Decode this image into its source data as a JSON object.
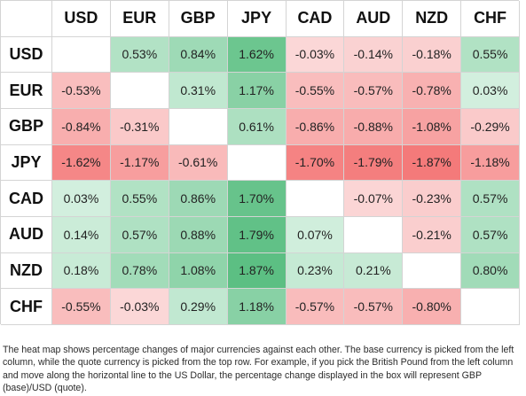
{
  "currencies": [
    "USD",
    "EUR",
    "GBP",
    "JPY",
    "CAD",
    "AUD",
    "NZD",
    "CHF"
  ],
  "rows": [
    {
      "base": "USD",
      "cells": [
        null,
        0.53,
        0.84,
        1.62,
        -0.03,
        -0.14,
        -0.18,
        0.55
      ]
    },
    {
      "base": "EUR",
      "cells": [
        -0.53,
        null,
        0.31,
        1.17,
        -0.55,
        -0.57,
        -0.78,
        0.03
      ]
    },
    {
      "base": "GBP",
      "cells": [
        -0.84,
        -0.31,
        null,
        0.61,
        -0.86,
        -0.88,
        -1.08,
        -0.29
      ]
    },
    {
      "base": "JPY",
      "cells": [
        -1.62,
        -1.17,
        -0.61,
        null,
        -1.7,
        -1.79,
        -1.87,
        -1.18
      ]
    },
    {
      "base": "CAD",
      "cells": [
        0.03,
        0.55,
        0.86,
        1.7,
        null,
        -0.07,
        -0.23,
        0.57
      ]
    },
    {
      "base": "AUD",
      "cells": [
        0.14,
        0.57,
        0.88,
        1.79,
        0.07,
        null,
        -0.21,
        0.57
      ]
    },
    {
      "base": "NZD",
      "cells": [
        0.18,
        0.78,
        1.08,
        1.87,
        0.23,
        0.21,
        null,
        0.8
      ]
    },
    {
      "base": "CHF",
      "cells": [
        -0.55,
        -0.03,
        0.29,
        1.18,
        -0.57,
        -0.57,
        -0.8,
        null
      ]
    }
  ],
  "value_suffix": "%",
  "colors": {
    "positive_light": "#d4f0df",
    "positive_strong": "#5cbf83",
    "negative_light": "#fbd9d9",
    "negative_strong": "#f47a7a",
    "empty": "#ffffff",
    "grid": "#d4d4d4"
  },
  "caption": "The heat map shows percentage changes of major currencies against each other. The base currency is picked from the left column, while the quote currency is picked from the top row. For example, if you pick the British Pound from the left column and move along the horizontal line to the US Dollar, the percentage change displayed in the box will represent GBP (base)/USD (quote).",
  "chart_data": {
    "type": "heatmap",
    "x_categories": [
      "USD",
      "EUR",
      "GBP",
      "JPY",
      "CAD",
      "AUD",
      "NZD",
      "CHF"
    ],
    "y_categories": [
      "USD",
      "EUR",
      "GBP",
      "JPY",
      "CAD",
      "AUD",
      "NZD",
      "CHF"
    ],
    "values": [
      [
        null,
        0.53,
        0.84,
        1.62,
        -0.03,
        -0.14,
        -0.18,
        0.55
      ],
      [
        -0.53,
        null,
        0.31,
        1.17,
        -0.55,
        -0.57,
        -0.78,
        0.03
      ],
      [
        -0.84,
        -0.31,
        null,
        0.61,
        -0.86,
        -0.88,
        -1.08,
        -0.29
      ],
      [
        -1.62,
        -1.17,
        -0.61,
        null,
        -1.7,
        -1.79,
        -1.87,
        -1.18
      ],
      [
        0.03,
        0.55,
        0.86,
        1.7,
        null,
        -0.07,
        -0.23,
        0.57
      ],
      [
        0.14,
        0.57,
        0.88,
        1.79,
        0.07,
        null,
        -0.21,
        0.57
      ],
      [
        0.18,
        0.78,
        1.08,
        1.87,
        0.23,
        0.21,
        null,
        0.8
      ],
      [
        -0.55,
        -0.03,
        0.29,
        1.18,
        -0.57,
        -0.57,
        -0.8,
        null
      ]
    ],
    "unit": "%"
  }
}
